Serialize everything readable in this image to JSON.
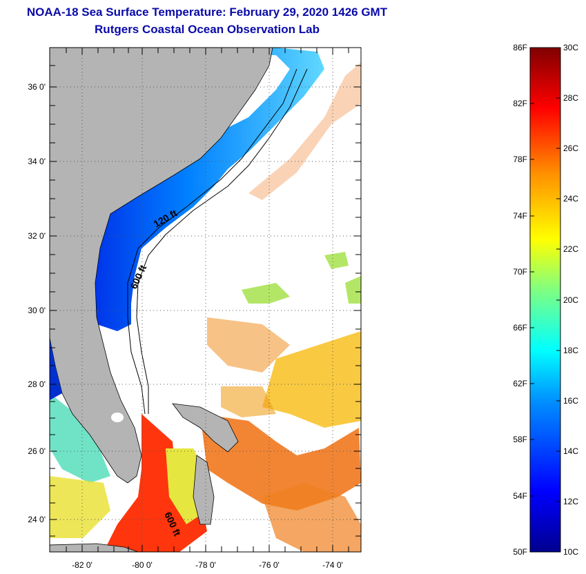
{
  "title": "NOAA-18 Sea Surface Temperature:  February 29, 2020 1426 GMT",
  "subtitle": "Rutgers Coastal Ocean Observation Lab",
  "map": {
    "lon_ticks": [
      "-82 0'",
      "-80 0'",
      "-78 0'",
      "-76 0'",
      "-74 0'"
    ],
    "lat_ticks": [
      "36 0'",
      "34 0'",
      "32 0'",
      "30 0'",
      "28 0'",
      "26 0'",
      "24 0'"
    ],
    "contour_labels": [
      "120 ft",
      "600 ft",
      "600 ft"
    ],
    "land_color": "#b4b4b4"
  },
  "colorbar": {
    "f_labels": [
      "86F",
      "82F",
      "78F",
      "74F",
      "70F",
      "66F",
      "62F",
      "58F",
      "54F",
      "50F"
    ],
    "c_labels": [
      "30C",
      "28C",
      "26C",
      "24C",
      "22C",
      "20C",
      "18C",
      "16C",
      "14C",
      "12C",
      "10C"
    ],
    "min_c": 10,
    "max_c": 30
  }
}
